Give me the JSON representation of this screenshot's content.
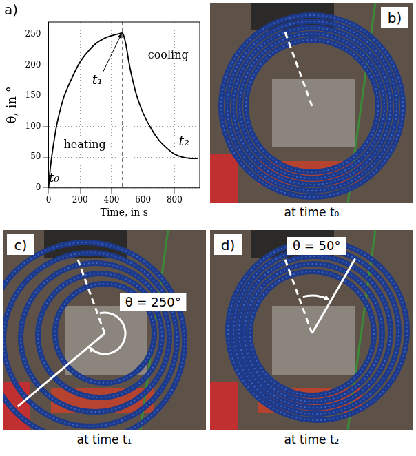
{
  "panel_label": "a)",
  "chart_data": {
    "type": "line",
    "x_label": "Time, in s",
    "y_label": "θ, in °",
    "x": [
      0,
      10,
      25,
      50,
      75,
      100,
      150,
      200,
      250,
      300,
      350,
      400,
      450,
      470,
      490,
      510,
      530,
      560,
      600,
      650,
      700,
      750,
      800,
      850,
      900,
      950
    ],
    "values": [
      0,
      30,
      60,
      100,
      128,
      150,
      180,
      205,
      222,
      235,
      243,
      248,
      251,
      252,
      235,
      205,
      180,
      150,
      122,
      97,
      78,
      65,
      55,
      50,
      48,
      48
    ],
    "color": "#000000",
    "xlim": [
      0,
      960
    ],
    "xticks": [
      0,
      200,
      400,
      600,
      800
    ],
    "ylim": [
      0,
      270
    ],
    "yticks": [
      0,
      50,
      100,
      150,
      200,
      250
    ],
    "grid": true,
    "reference_lines": [
      {
        "x": 470,
        "line_style": "dashed"
      }
    ],
    "annotations": [
      {
        "text": "heating",
        "x": 230,
        "y": 70
      },
      {
        "text": "cooling",
        "x": 760,
        "y": 215
      },
      {
        "text": "t₀",
        "x": 35,
        "y": 15
      },
      {
        "text": "t₁",
        "x": 310,
        "y": 175,
        "arrow_to": [
          465,
          252
        ]
      },
      {
        "text": "t₂",
        "x": 860,
        "y": 75
      }
    ]
  },
  "photos": [
    {
      "panel_label": "b)",
      "caption": "at time t₀"
    },
    {
      "panel_label": "c)",
      "caption": "at time t₁",
      "angle": {
        "text": "θ = 250°",
        "value": 250
      }
    },
    {
      "panel_label": "d)",
      "caption": "at time t₂",
      "angle": {
        "text": "θ = 50°",
        "value": 50
      }
    }
  ]
}
